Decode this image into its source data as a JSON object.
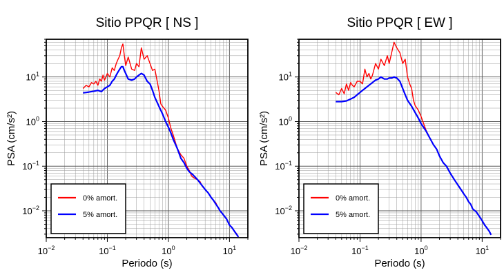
{
  "chart_data": [
    {
      "type": "line",
      "title": "Sitio PPQR [ NS ]",
      "xlabel": "Periodo (s)",
      "ylabel": "PSA (cm/s²)",
      "xscale": "log",
      "yscale": "log",
      "xlim": [
        0.01,
        20
      ],
      "ylim": [
        0.0025,
        70
      ],
      "grid": true,
      "legend_position": "bottom-left",
      "x_ticks": [
        {
          "base": "10",
          "exp": "−2",
          "value": 0.01
        },
        {
          "base": "10",
          "exp": "−1",
          "value": 0.1
        },
        {
          "base": "10",
          "exp": "0",
          "value": 1
        },
        {
          "base": "10",
          "exp": "1",
          "value": 10
        }
      ],
      "y_ticks": [
        {
          "base": "10",
          "exp": "−2",
          "value": 0.01
        },
        {
          "base": "10",
          "exp": "−1",
          "value": 0.1
        },
        {
          "base": "10",
          "exp": "0",
          "value": 1
        },
        {
          "base": "10",
          "exp": "1",
          "value": 10
        }
      ],
      "series": [
        {
          "name": "0% amort.",
          "color": "#ff0000",
          "points": [
            [
              0.04,
              5.5
            ],
            [
              0.045,
              6.5
            ],
            [
              0.05,
              6
            ],
            [
              0.055,
              7.5
            ],
            [
              0.06,
              7
            ],
            [
              0.065,
              8
            ],
            [
              0.07,
              6.5
            ],
            [
              0.075,
              9
            ],
            [
              0.08,
              8
            ],
            [
              0.085,
              11
            ],
            [
              0.09,
              8.5
            ],
            [
              0.1,
              12
            ],
            [
              0.11,
              10
            ],
            [
              0.12,
              16
            ],
            [
              0.13,
              14
            ],
            [
              0.14,
              20
            ],
            [
              0.15,
              25
            ],
            [
              0.16,
              30
            ],
            [
              0.17,
              45
            ],
            [
              0.18,
              55
            ],
            [
              0.19,
              30
            ],
            [
              0.2,
              18
            ],
            [
              0.22,
              28
            ],
            [
              0.25,
              15
            ],
            [
              0.28,
              14
            ],
            [
              0.3,
              20
            ],
            [
              0.33,
              17
            ],
            [
              0.36,
              45
            ],
            [
              0.4,
              25
            ],
            [
              0.45,
              30
            ],
            [
              0.5,
              20
            ],
            [
              0.55,
              14
            ],
            [
              0.6,
              15
            ],
            [
              0.7,
              5
            ],
            [
              0.75,
              2.5
            ],
            [
              0.8,
              2.2
            ],
            [
              0.9,
              1.8
            ],
            [
              1,
              1.2
            ],
            [
              1.1,
              0.7
            ],
            [
              1.2,
              0.5
            ],
            [
              1.4,
              0.25
            ],
            [
              1.6,
              0.18
            ],
            [
              1.8,
              0.15
            ],
            [
              2,
              0.1
            ],
            [
              2.2,
              0.08
            ],
            [
              2.4,
              0.06
            ],
            [
              2.6,
              0.055
            ],
            [
              3,
              0.05
            ],
            [
              3.3,
              0.045
            ],
            [
              3.6,
              0.035
            ],
            [
              4,
              0.03
            ],
            [
              4.5,
              0.025
            ],
            [
              5,
              0.02
            ],
            [
              5.5,
              0.017
            ],
            [
              6,
              0.015
            ],
            [
              6.5,
              0.012
            ],
            [
              7,
              0.01
            ],
            [
              7.5,
              0.009
            ],
            [
              8,
              0.008
            ],
            [
              9,
              0.0065
            ],
            [
              10,
              0.0048
            ],
            [
              11,
              0.0042
            ],
            [
              12,
              0.0035
            ],
            [
              13,
              0.0031
            ],
            [
              14,
              0.0026
            ]
          ]
        },
        {
          "name": "5% amort.",
          "color": "#0000ff",
          "points": [
            [
              0.04,
              4.4
            ],
            [
              0.05,
              4.6
            ],
            [
              0.06,
              4.8
            ],
            [
              0.07,
              5
            ],
            [
              0.08,
              4.7
            ],
            [
              0.09,
              5.5
            ],
            [
              0.1,
              6
            ],
            [
              0.11,
              6.5
            ],
            [
              0.12,
              8
            ],
            [
              0.13,
              9
            ],
            [
              0.14,
              11
            ],
            [
              0.15,
              13
            ],
            [
              0.16,
              15
            ],
            [
              0.17,
              17
            ],
            [
              0.18,
              17
            ],
            [
              0.19,
              14
            ],
            [
              0.2,
              12
            ],
            [
              0.22,
              9
            ],
            [
              0.25,
              8.5
            ],
            [
              0.28,
              9
            ],
            [
              0.3,
              10
            ],
            [
              0.33,
              11
            ],
            [
              0.36,
              12
            ],
            [
              0.4,
              11
            ],
            [
              0.45,
              8
            ],
            [
              0.5,
              7
            ],
            [
              0.55,
              5
            ],
            [
              0.6,
              3.5
            ],
            [
              0.7,
              2.2
            ],
            [
              0.8,
              1.5
            ],
            [
              0.9,
              1
            ],
            [
              1,
              0.75
            ],
            [
              1.1,
              0.55
            ],
            [
              1.2,
              0.4
            ],
            [
              1.4,
              0.25
            ],
            [
              1.6,
              0.15
            ],
            [
              1.8,
              0.12
            ],
            [
              2,
              0.09
            ],
            [
              2.2,
              0.075
            ],
            [
              2.5,
              0.065
            ],
            [
              3,
              0.05
            ],
            [
              3.5,
              0.038
            ],
            [
              4,
              0.03
            ],
            [
              4.5,
              0.025
            ],
            [
              5,
              0.02
            ],
            [
              5.5,
              0.017
            ],
            [
              6,
              0.014
            ],
            [
              6.5,
              0.012
            ],
            [
              7,
              0.01
            ],
            [
              7.5,
              0.009
            ],
            [
              8,
              0.008
            ],
            [
              9,
              0.0065
            ],
            [
              10,
              0.0048
            ],
            [
              11,
              0.0042
            ],
            [
              12,
              0.0035
            ],
            [
              13,
              0.003
            ],
            [
              14,
              0.0026
            ]
          ]
        }
      ]
    },
    {
      "type": "line",
      "title": "Sitio PPQR [ EW ]",
      "xlabel": "Periodo (s)",
      "ylabel": "PSA (cm/s²)",
      "xscale": "log",
      "yscale": "log",
      "xlim": [
        0.01,
        20
      ],
      "ylim": [
        0.0025,
        70
      ],
      "grid": true,
      "legend_position": "bottom-left",
      "x_ticks": [
        {
          "base": "10",
          "exp": "−2",
          "value": 0.01
        },
        {
          "base": "10",
          "exp": "−1",
          "value": 0.1
        },
        {
          "base": "10",
          "exp": "0",
          "value": 1
        },
        {
          "base": "10",
          "exp": "1",
          "value": 10
        }
      ],
      "y_ticks": [
        {
          "base": "10",
          "exp": "−2",
          "value": 0.01
        },
        {
          "base": "10",
          "exp": "−1",
          "value": 0.1
        },
        {
          "base": "10",
          "exp": "0",
          "value": 1
        },
        {
          "base": "10",
          "exp": "1",
          "value": 10
        }
      ],
      "series": [
        {
          "name": "0% amort.",
          "color": "#ff0000",
          "points": [
            [
              0.04,
              4.5
            ],
            [
              0.045,
              4
            ],
            [
              0.05,
              5.5
            ],
            [
              0.055,
              4.2
            ],
            [
              0.06,
              7
            ],
            [
              0.065,
              5
            ],
            [
              0.07,
              7.5
            ],
            [
              0.075,
              6.5
            ],
            [
              0.08,
              6
            ],
            [
              0.09,
              8
            ],
            [
              0.1,
              8
            ],
            [
              0.11,
              7
            ],
            [
              0.12,
              15
            ],
            [
              0.13,
              10
            ],
            [
              0.14,
              12
            ],
            [
              0.15,
              9
            ],
            [
              0.16,
              11
            ],
            [
              0.18,
              20
            ],
            [
              0.2,
              15
            ],
            [
              0.22,
              25
            ],
            [
              0.25,
              18
            ],
            [
              0.28,
              30
            ],
            [
              0.3,
              20
            ],
            [
              0.33,
              35
            ],
            [
              0.36,
              60
            ],
            [
              0.4,
              45
            ],
            [
              0.45,
              35
            ],
            [
              0.5,
              20
            ],
            [
              0.55,
              25
            ],
            [
              0.6,
              10
            ],
            [
              0.65,
              7
            ],
            [
              0.7,
              5.5
            ],
            [
              0.75,
              3
            ],
            [
              0.8,
              2.3
            ],
            [
              0.9,
              1.8
            ],
            [
              1,
              1.3
            ],
            [
              1.1,
              0.9
            ],
            [
              1.2,
              0.65
            ],
            [
              1.4,
              0.42
            ],
            [
              1.6,
              0.3
            ],
            [
              1.8,
              0.24
            ],
            [
              2,
              0.17
            ],
            [
              2.3,
              0.12
            ],
            [
              2.6,
              0.1
            ],
            [
              3,
              0.07
            ],
            [
              3.5,
              0.05
            ],
            [
              4,
              0.038
            ],
            [
              4.5,
              0.03
            ],
            [
              5,
              0.024
            ],
            [
              5.5,
              0.02
            ],
            [
              6,
              0.016
            ],
            [
              6.5,
              0.014
            ],
            [
              7,
              0.011
            ],
            [
              8,
              0.0095
            ],
            [
              9,
              0.0075
            ],
            [
              10,
              0.006
            ],
            [
              11,
              0.0048
            ],
            [
              12,
              0.0041
            ],
            [
              13,
              0.0035
            ],
            [
              14,
              0.0029
            ]
          ]
        },
        {
          "name": "5% amort.",
          "color": "#0000ff",
          "points": [
            [
              0.04,
              2.8
            ],
            [
              0.05,
              2.8
            ],
            [
              0.06,
              2.9
            ],
            [
              0.07,
              3.2
            ],
            [
              0.08,
              3.5
            ],
            [
              0.09,
              4
            ],
            [
              0.1,
              4.5
            ],
            [
              0.11,
              5
            ],
            [
              0.12,
              5.5
            ],
            [
              0.13,
              6
            ],
            [
              0.14,
              6.5
            ],
            [
              0.15,
              7
            ],
            [
              0.16,
              7.5
            ],
            [
              0.18,
              8.5
            ],
            [
              0.2,
              9
            ],
            [
              0.22,
              10
            ],
            [
              0.25,
              9
            ],
            [
              0.28,
              9
            ],
            [
              0.3,
              9.5
            ],
            [
              0.33,
              9.5
            ],
            [
              0.36,
              10
            ],
            [
              0.4,
              9.5
            ],
            [
              0.45,
              8
            ],
            [
              0.5,
              5.5
            ],
            [
              0.55,
              4
            ],
            [
              0.6,
              3
            ],
            [
              0.7,
              2.2
            ],
            [
              0.8,
              1.6
            ],
            [
              0.9,
              1.2
            ],
            [
              1,
              0.9
            ],
            [
              1.2,
              0.62
            ],
            [
              1.4,
              0.42
            ],
            [
              1.6,
              0.3
            ],
            [
              1.8,
              0.24
            ],
            [
              2,
              0.17
            ],
            [
              2.3,
              0.12
            ],
            [
              2.6,
              0.1
            ],
            [
              3,
              0.07
            ],
            [
              3.5,
              0.05
            ],
            [
              4,
              0.038
            ],
            [
              4.5,
              0.03
            ],
            [
              5,
              0.024
            ],
            [
              5.5,
              0.02
            ],
            [
              6,
              0.016
            ],
            [
              6.5,
              0.014
            ],
            [
              7,
              0.011
            ],
            [
              8,
              0.0095
            ],
            [
              9,
              0.0075
            ],
            [
              10,
              0.006
            ],
            [
              11,
              0.0048
            ],
            [
              12,
              0.0041
            ],
            [
              13,
              0.0035
            ],
            [
              14,
              0.0029
            ]
          ]
        }
      ]
    }
  ]
}
